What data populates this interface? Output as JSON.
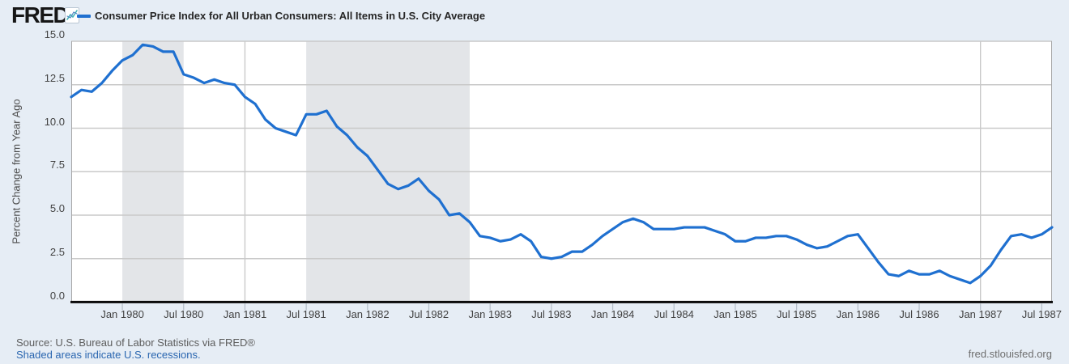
{
  "header": {
    "logo_text": "FRED",
    "registered_mark": "®",
    "legend_label": "Consumer Price Index for All Urban Consumers: All Items in U.S. City Average"
  },
  "colors": {
    "line": "#1f70d0",
    "background": "#e6edf5",
    "plot_background": "#ffffff",
    "gridline": "#c9c9c9",
    "plot_border": "#a6a6a6",
    "axis_line": "#0b0b0b",
    "tick_mark": "#b3bdc8",
    "recession_shading": "#e3e5e8",
    "link": "#2a66b0"
  },
  "chart_data": {
    "type": "line",
    "title": "Consumer Price Index for All Urban Consumers: All Items in U.S. City Average",
    "ylabel": "Percent Change from Year Ago",
    "xlabel": "",
    "ylim": [
      0,
      15
    ],
    "grid": true,
    "legend_position": "top-left",
    "frequency": "monthly",
    "x_start": "1979-08",
    "x_end": "1987-08",
    "y_ticks": [
      0,
      2.5,
      5,
      7.5,
      10,
      12.5,
      15
    ],
    "y_tick_labels": [
      "0.0",
      "2.5",
      "5.0",
      "7.5",
      "10.0",
      "12.5",
      "15.0"
    ],
    "x_ticks": [
      {
        "label": "Jan 1980",
        "month_index": 5
      },
      {
        "label": "Jul 1980",
        "month_index": 11
      },
      {
        "label": "Jan 1981",
        "month_index": 17
      },
      {
        "label": "Jul 1981",
        "month_index": 23
      },
      {
        "label": "Jan 1982",
        "month_index": 29
      },
      {
        "label": "Jul 1982",
        "month_index": 35
      },
      {
        "label": "Jan 1983",
        "month_index": 41
      },
      {
        "label": "Jul 1983",
        "month_index": 47
      },
      {
        "label": "Jan 1984",
        "month_index": 53
      },
      {
        "label": "Jul 1984",
        "month_index": 59
      },
      {
        "label": "Jan 1985",
        "month_index": 65
      },
      {
        "label": "Jul 1985",
        "month_index": 71
      },
      {
        "label": "Jan 1986",
        "month_index": 77
      },
      {
        "label": "Jul 1986",
        "month_index": 83
      },
      {
        "label": "Jan 1987",
        "month_index": 89
      },
      {
        "label": "Jul 1987",
        "month_index": 95
      }
    ],
    "x_gridline_month_indices": [
      17,
      89
    ],
    "recessions": [
      {
        "start_month_index": 5,
        "end_month_index": 11,
        "label": "Jan 1980 - Jul 1980"
      },
      {
        "start_month_index": 23,
        "end_month_index": 39,
        "label": "Jul 1981 - Nov 1982"
      }
    ],
    "series": [
      {
        "name": "Consumer Price Index for All Urban Consumers: All Items in U.S. City Average",
        "color": "#1f70d0",
        "units": "Percent Change from Year Ago",
        "values": [
          11.8,
          12.2,
          12.1,
          12.6,
          13.3,
          13.9,
          14.2,
          14.8,
          14.7,
          14.4,
          14.4,
          13.1,
          12.9,
          12.6,
          12.8,
          12.6,
          12.5,
          11.8,
          11.4,
          10.5,
          10.0,
          9.8,
          9.6,
          10.8,
          10.8,
          11.0,
          10.1,
          9.6,
          8.9,
          8.4,
          7.6,
          6.8,
          6.5,
          6.7,
          7.1,
          6.4,
          5.9,
          5.0,
          5.1,
          4.6,
          3.8,
          3.7,
          3.5,
          3.6,
          3.9,
          3.5,
          2.6,
          2.5,
          2.6,
          2.9,
          2.9,
          3.3,
          3.8,
          4.2,
          4.6,
          4.8,
          4.6,
          4.2,
          4.2,
          4.2,
          4.3,
          4.3,
          4.3,
          4.1,
          3.9,
          3.5,
          3.5,
          3.7,
          3.7,
          3.8,
          3.8,
          3.6,
          3.3,
          3.1,
          3.2,
          3.5,
          3.8,
          3.9,
          3.1,
          2.3,
          1.6,
          1.5,
          1.8,
          1.6,
          1.6,
          1.8,
          1.5,
          1.3,
          1.1,
          1.5,
          2.1,
          3.0,
          3.8,
          3.9,
          3.7,
          3.9,
          4.3
        ]
      }
    ]
  },
  "footer": {
    "source_line": "Source: U.S. Bureau of Labor Statistics via FRED®",
    "recession_note": "Shaded areas indicate U.S. recessions.",
    "watermark": "fred.stlouisfed.org"
  }
}
